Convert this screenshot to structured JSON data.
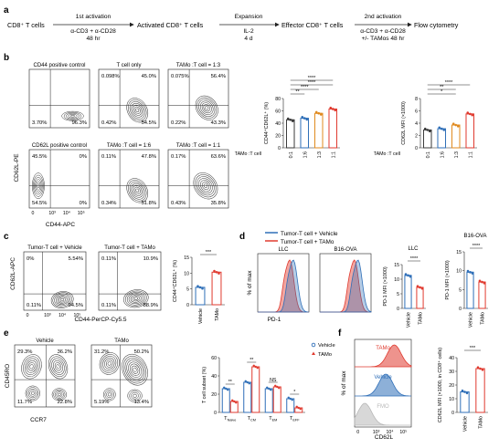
{
  "panels": {
    "a": {
      "letter": "a",
      "workflow": {
        "step1": "CD8⁺ T cells",
        "arrow1_top": "1st activation",
        "arrow1_mid": "α-CD3 + α-CD28",
        "arrow1_bot": "48 hr",
        "step2": "Activated CD8⁺ T cells",
        "arrow2_top": "Expansion",
        "arrow2_mid": "IL-2",
        "arrow2_bot": "4 d",
        "step3": "Effector CD8⁺ T cells",
        "arrow3_top": "2nd activation",
        "arrow3_mid": "α-CD3 + α-CD28",
        "arrow3_bot": "+/- TAMos 48 hr",
        "step4": "Flow cytometry"
      }
    },
    "b": {
      "letter": "b",
      "y_axis": "CD62L-PE",
      "x_axis": "CD44-APC",
      "plots": [
        {
          "title": "CD44 positive control",
          "q": [
            "",
            "",
            "3.70%",
            "96.3%"
          ]
        },
        {
          "title": "T cell only",
          "q": [
            "0.098%",
            "45.0%",
            "0.42%",
            "54.5%"
          ]
        },
        {
          "title": "TAMo :T cell = 1:3",
          "q": [
            "0.075%",
            "56.4%",
            "0.22%",
            "43.3%"
          ]
        },
        {
          "title": "CD62L positive control",
          "q": [
            "45.5%",
            "0%",
            "54.5%",
            "0%"
          ]
        },
        {
          "title": "TAMo :T cell = 1:6",
          "q": [
            "0.11%",
            "47.8%",
            "0.34%",
            "51.8%"
          ]
        },
        {
          "title": "TAMo :T cell = 1:1",
          "q": [
            "0.17%",
            "63.6%",
            "0.43%",
            "35.8%"
          ]
        }
      ],
      "tick_labels": [
        "0",
        "10³",
        "10⁴",
        "10⁵"
      ],
      "chart1": {
        "ylabel": "CD44⁺CD62L⁺ (%)",
        "ytick": [
          "0",
          "20",
          "40",
          "60",
          "80"
        ],
        "sig": [
          "**",
          "****",
          "****",
          "****"
        ]
      },
      "chart2": {
        "ylabel": "CD62L MFI (×1000)",
        "ytick": [
          "0",
          "2",
          "4",
          "6",
          "8"
        ],
        "sig": [
          "*",
          "**",
          "****"
        ]
      },
      "xgroup_label": "TAMo :T cell",
      "categories": [
        "0:1",
        "1:6",
        "1:3",
        "1:1"
      ]
    },
    "c": {
      "letter": "c",
      "plots": [
        {
          "title": "Tumor-T cell + Vehicle",
          "q": [
            "0%",
            "5.54%",
            "0.11%",
            "94.5%"
          ]
        },
        {
          "title": "Tumor-T cell + TAMo",
          "q": [
            "0.11%",
            "10.9%",
            "0.11%",
            "88.9%"
          ]
        }
      ],
      "y_axis": "CD62L-APC",
      "x_axis": "CD44-PerCP-Cy5.5",
      "tick_labels": [
        "0",
        "10³",
        "10⁴",
        "10⁵"
      ],
      "chart": {
        "ylabel": "CD44⁺CD62L⁺ (%)",
        "ytick": [
          "0",
          "5",
          "10",
          "15"
        ],
        "sig": "***"
      },
      "categories": [
        "Vehicle",
        "TAMo"
      ]
    },
    "d": {
      "letter": "d",
      "legend": [
        "Tumor-T cell + Vehicle",
        "Tumor-T cell + TAMo"
      ],
      "hist_titles": [
        "LLC",
        "B16-OVA"
      ],
      "y_axis": "% of max",
      "x_axis": "PD-1",
      "chart_titles": [
        "LLC",
        "B16-OVA"
      ],
      "chart_ylabel": "PD-1 MFI (×1000)",
      "ytick1": [
        "0",
        "5",
        "10",
        "15"
      ],
      "ytick2": [
        "0",
        "5",
        "10",
        "15"
      ],
      "sig": [
        "****",
        "****"
      ],
      "categories": [
        "Vehicle",
        "TAMo"
      ]
    },
    "e": {
      "letter": "e",
      "plots": [
        {
          "title": "Vehicle",
          "q": [
            "29.3%",
            "36.2%",
            "11.7%",
            "22.8%"
          ]
        },
        {
          "title": "TAMo",
          "q": [
            "31.2%",
            "50.2%",
            "5.19%",
            "13.4%"
          ]
        }
      ],
      "y_axis": "CD45RO",
      "x_axis": "CCR7",
      "chart": {
        "ylabel": "T cell subset (%)",
        "ytick": [
          "0",
          "20",
          "40",
          "60"
        ],
        "legend": [
          "Vehicle",
          "TAMo"
        ],
        "categories": [
          "T",
          "T",
          "T",
          "T"
        ],
        "subscripts": [
          "Naive",
          "CM",
          "EM",
          "EFF"
        ],
        "sig": [
          "**",
          "**",
          "NS",
          "*"
        ]
      }
    },
    "f": {
      "letter": "f",
      "hist_labels": [
        "TAMo",
        "Vehicle",
        "FMO"
      ],
      "y_axis": "% of max",
      "x_axis": "CD62L",
      "tick_labels": [
        "0",
        "10³",
        "10⁴",
        "10⁵"
      ],
      "chart": {
        "ylabel": "CD62L MFI (×1000, in CD8⁺ cells)",
        "ytick": [
          "0",
          "10",
          "20",
          "30",
          "40"
        ],
        "sig": "***",
        "categories": [
          "Vehicle",
          "TAMo"
        ]
      }
    }
  },
  "colors": {
    "vehicle": "#2f6fb8",
    "tamo": "#e03a2f",
    "ratio": [
      "#3a3a3a",
      "#2f6fb8",
      "#e08a1e",
      "#e03a2f"
    ],
    "fmo": "#b8b8b8"
  },
  "chart_data": [
    {
      "type": "bar",
      "panel": "b-left",
      "categories": [
        "0:1",
        "1:6",
        "1:3",
        "1:1"
      ],
      "values": [
        45.5,
        48,
        56,
        63
      ],
      "ylabel": "CD44⁺CD62L⁺ (%)",
      "ylim": [
        0,
        80
      ]
    },
    {
      "type": "bar",
      "panel": "b-right",
      "categories": [
        "0:1",
        "1:6",
        "1:3",
        "1:1"
      ],
      "values": [
        2.9,
        3.1,
        3.7,
        5.5
      ],
      "ylabel": "CD62L MFI (×1000)",
      "ylim": [
        0,
        8
      ]
    },
    {
      "type": "bar",
      "panel": "c",
      "categories": [
        "Vehicle",
        "TAMo"
      ],
      "values": [
        5.5,
        10.3
      ],
      "ylabel": "CD44⁺CD62L⁺ (%)",
      "ylim": [
        0,
        15
      ]
    },
    {
      "type": "bar",
      "panel": "d-LLC",
      "categories": [
        "Vehicle",
        "TAMo"
      ],
      "values": [
        11.3,
        7.2
      ],
      "ylabel": "PD-1 MFI (×1000)",
      "ylim": [
        0,
        15
      ]
    },
    {
      "type": "bar",
      "panel": "d-B16-OVA",
      "categories": [
        "Vehicle",
        "TAMo"
      ],
      "values": [
        9.6,
        7.0
      ],
      "ylabel": "PD-1 MFI (×1000)",
      "ylim": [
        0,
        15
      ]
    },
    {
      "type": "bar",
      "panel": "e",
      "categories": [
        "Naive",
        "CM",
        "EM",
        "EFF"
      ],
      "series": [
        {
          "name": "Vehicle",
          "values": [
            26,
            33,
            26,
            15
          ]
        },
        {
          "name": "TAMo",
          "values": [
            12,
            50,
            28,
            5
          ]
        }
      ],
      "ylabel": "T cell subset (%)",
      "ylim": [
        0,
        60
      ]
    },
    {
      "type": "bar",
      "panel": "f",
      "categories": [
        "Vehicle",
        "TAMo"
      ],
      "values": [
        15,
        32
      ],
      "ylabel": "CD62L MFI (×1000, in CD8⁺ cells)",
      "ylim": [
        0,
        40
      ]
    }
  ]
}
